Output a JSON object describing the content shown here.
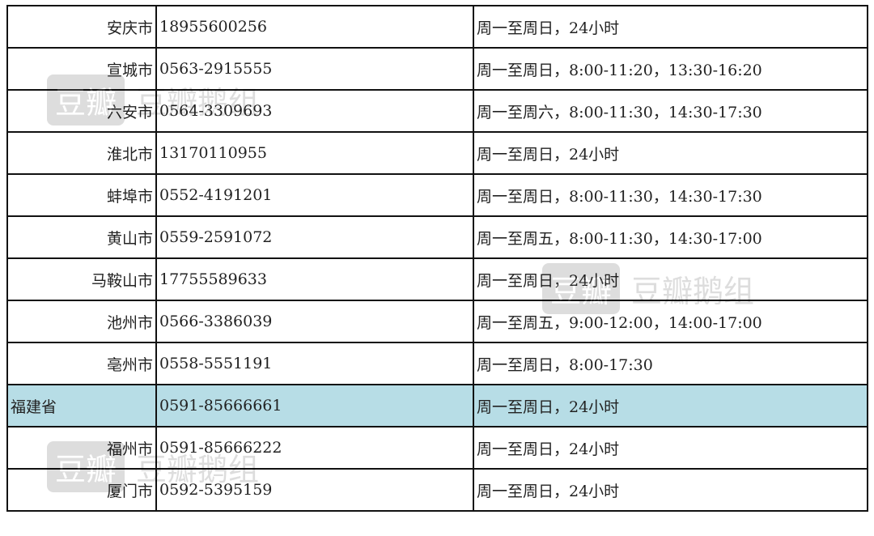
{
  "rows": [
    {
      "name": "安庆市",
      "phone": "18955600256",
      "hours": "周一至周日，24小时"
    },
    {
      "name": "宣城市",
      "phone": "0563-2915555",
      "hours": "周一至周日，8:00-11:20，13:30-16:20"
    },
    {
      "name": "六安市",
      "phone": "0564-3309693",
      "hours": "周一至周六，8:00-11:30，14:30-17:30"
    },
    {
      "name": "淮北市",
      "phone": "13170110955",
      "hours": "周一至周日，24小时"
    },
    {
      "name": "蚌埠市",
      "phone": "0552-4191201",
      "hours": "周一至周日，8:00-11:30，14:30-17:30"
    },
    {
      "name": "黄山市",
      "phone": "0559-2591072",
      "hours": "周一至周五，8:00-11:30，14:30-17:00"
    },
    {
      "name": "马鞍山市",
      "phone": "17755589633",
      "hours": "周一至周日，24小时"
    },
    {
      "name": "池州市",
      "phone": "0566-3386039",
      "hours": "周一至周五，9:00-12:00，14:00-17:00"
    },
    {
      "name": "亳州市",
      "phone": "0558-5551191",
      "hours": "周一至周日，8:00-17:30"
    },
    {
      "name": "福建省",
      "phone": "0591-85666661",
      "hours": "周一至周日，24小时",
      "highlight": true
    },
    {
      "name": "福州市",
      "phone": "0591-85666222",
      "hours": "周一至周日，24小时"
    },
    {
      "name": "厦门市",
      "phone": "0592-5395159",
      "hours": "周一至周日，24小时"
    }
  ],
  "watermark": {
    "logo": "豆瓣",
    "text": "豆瓣鹅组"
  },
  "colors": {
    "highlight": "#b7dde6"
  }
}
